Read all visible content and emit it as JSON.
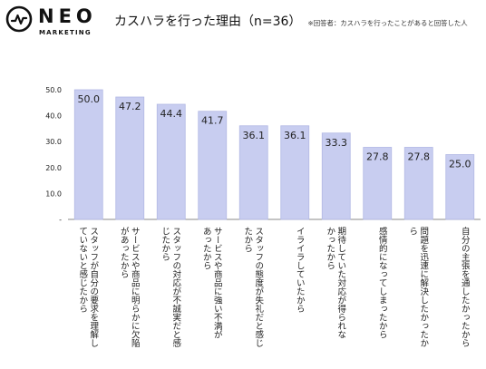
{
  "header": {
    "brand": "NEO",
    "brand_sub": "MARKETING",
    "title": "カスハラを行った理由（n=36）",
    "note": "※回答者：カスハラを行ったことがあると回答した人"
  },
  "colors": {
    "bar_fill": "#c8cdf0",
    "bar_stroke": "#b2b8e4",
    "axis": "#888888",
    "text": "#222222"
  },
  "chart_data": {
    "type": "bar",
    "categories": [
      "スタッフが自分の要求を理解していないと感じたから",
      "サービスや商品に明らかに欠陥があったから",
      "スタッフの対応が不誠実だと感じたから",
      "サービスや商品に強い不満があったから",
      "スタッフの態度が失礼だと感じたから",
      "イライラしていたから",
      "期待していた対応が得られなかったから",
      "感情的になってしまったから",
      "問題を迅速に解決したかったから",
      "自分の主張を通したかったから"
    ],
    "label_lines": [
      [
        "スタッフが自分の要求を理解し",
        "ていないと感じたから"
      ],
      [
        "サービスや商品に明らかに欠陥",
        "があったから"
      ],
      [
        "スタッフの対応が不誠実だと感",
        "じたから"
      ],
      [
        "サービスや商品に強い不満が",
        "あったから"
      ],
      [
        "スタッフの態度が失礼だと感じ",
        "たから"
      ],
      [
        "イライラしていたから"
      ],
      [
        "期待していた対応が得られな",
        "かったから"
      ],
      [
        "感情的になってしまったから"
      ],
      [
        "問題を迅速に解決したかったか",
        "ら"
      ],
      [
        "自分の主張を通したかったから"
      ]
    ],
    "values": [
      50.0,
      47.2,
      44.4,
      41.7,
      36.1,
      36.1,
      33.3,
      27.8,
      27.8,
      25.0
    ],
    "value_labels": [
      "50.0",
      "47.2",
      "44.4",
      "41.7",
      "36.1",
      "36.1",
      "33.3",
      "27.8",
      "27.8",
      "25.0"
    ],
    "yticks": [
      0,
      10,
      20,
      30,
      40,
      50
    ],
    "ytick_labels": [
      "-",
      "10.0",
      "20.0",
      "30.0",
      "40.0",
      "50.0"
    ],
    "ylim": [
      0,
      50
    ],
    "grid": false,
    "legend": "none"
  }
}
